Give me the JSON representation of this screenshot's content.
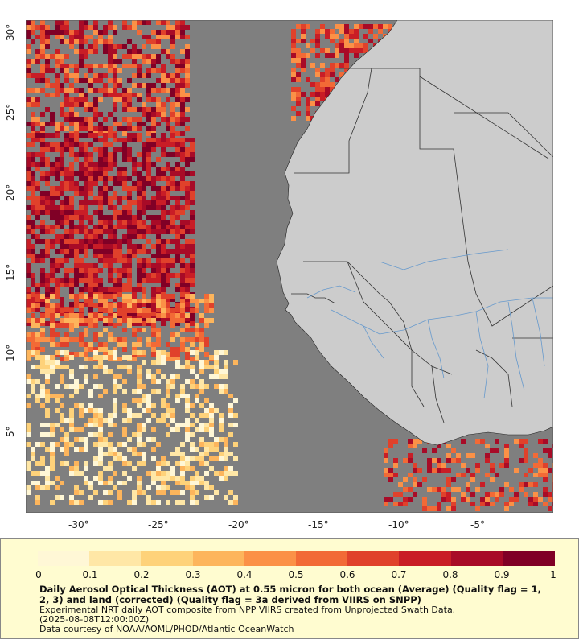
{
  "colors": {
    "ocean_nodata": "#7f7f7f",
    "land": "#cccccc",
    "border": "#333333",
    "rivers": "#6699cc",
    "legend_bg": "#fffcd0",
    "colorbar": [
      "#fff7d6",
      "#ffe7a6",
      "#fed27a",
      "#fdb55c",
      "#fb9147",
      "#f26a36",
      "#e0412b",
      "#c91d26",
      "#a80b27",
      "#800026"
    ]
  },
  "axes": {
    "x_ticks": [
      "-30°",
      "-25°",
      "-20°",
      "-15°",
      "-10°",
      "-5°"
    ],
    "y_ticks": [
      "30°",
      "25°",
      "20°",
      "15°",
      "10°",
      "5°"
    ]
  },
  "legend": {
    "ticks": [
      "0",
      "0.1",
      "0.2",
      "0.3",
      "0.4",
      "0.5",
      "0.6",
      "0.7",
      "0.8",
      "0.9",
      "1"
    ],
    "title": "Daily Aerosol Optical Thickness (AOT) at 0.55 micron for both ocean (Average) (Quality flag = 1, 2, 3) and land (corrected) (Quality flag = 3a derived from VIIRS on SNPP)",
    "line1": "Experimental NRT daily AOT composite from NPP VIIRS created from Unprojected Swath Data.",
    "line2": "(2025-08-08T12:00:00Z)",
    "line3": "Data courtesy of NOAA/AOML/PHOD/Atlantic OceanWatch"
  }
}
